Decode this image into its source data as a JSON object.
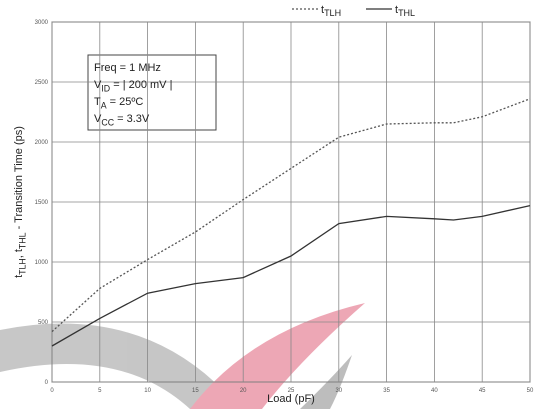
{
  "chart_data": {
    "type": "line",
    "ylabel": [
      {
        "text": "t"
      },
      {
        "text": "TLH",
        "sub": true
      },
      {
        "text": ", t"
      },
      {
        "text": "THL",
        "sub": true
      },
      {
        "text": " - Transition Time (ps)"
      }
    ],
    "xlabel": "Load (pF)",
    "x": [
      0,
      5,
      10,
      15,
      20,
      25,
      30,
      35,
      40,
      42,
      45,
      50
    ],
    "series": [
      {
        "name": "tTLH",
        "color": "#555555",
        "dash": true,
        "values": [
          420,
          780,
          1020,
          1250,
          1520,
          1780,
          2040,
          2150,
          2160,
          2160,
          2210,
          2360
        ]
      },
      {
        "name": "tTHL",
        "color": "#333333",
        "dash": false,
        "values": [
          300,
          530,
          740,
          820,
          870,
          1050,
          1320,
          1380,
          1360,
          1350,
          1380,
          1470
        ]
      }
    ],
    "xlim": [
      0,
      50
    ],
    "xticks": [
      0,
      5,
      10,
      15,
      20,
      25,
      30,
      35,
      40,
      45,
      50
    ],
    "ylim": [
      0,
      3000
    ],
    "yticks": [
      0,
      500,
      1000,
      1500,
      2000,
      2500,
      3000
    ],
    "grid": true,
    "annotations": [
      [
        {
          "text": "Freq = 1 MHz"
        }
      ],
      [
        {
          "text": "V"
        },
        {
          "text": "ID",
          "sub": true
        },
        {
          "text": "  = | 200 mV |"
        }
      ],
      [
        {
          "text": "T"
        },
        {
          "text": "A",
          "sub": true
        },
        {
          "text": "   = 25ºC"
        }
      ],
      [
        {
          "text": "V"
        },
        {
          "text": "CC",
          "sub": true
        },
        {
          "text": " = 3.3V"
        }
      ]
    ]
  }
}
